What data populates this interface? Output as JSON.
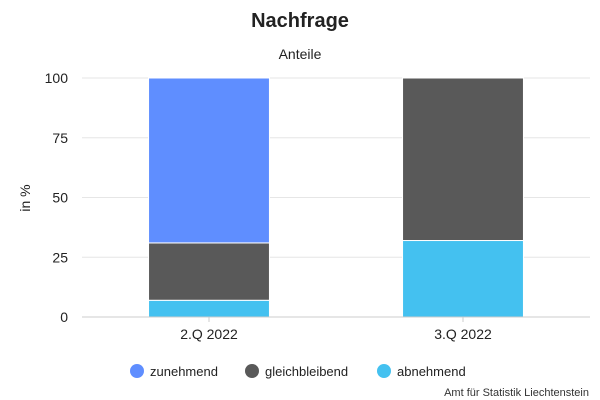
{
  "chart_data": {
    "type": "bar",
    "stacked": true,
    "title": "Nachfrage",
    "subtitle": "Anteile",
    "ylabel": "in %",
    "xlabel": "",
    "ylim": [
      0,
      100
    ],
    "yticks": [
      0,
      25,
      50,
      75,
      100
    ],
    "grid": true,
    "legend_position": "bottom",
    "categories": [
      "2.Q 2022",
      "3.Q 2022"
    ],
    "series": [
      {
        "name": "abnehmend",
        "color": "#44c1f0",
        "values": [
          7,
          32
        ]
      },
      {
        "name": "gleichbleibend",
        "color": "#595959",
        "values": [
          24,
          68
        ]
      },
      {
        "name": "zunehmend",
        "color": "#5f8eff",
        "values": [
          69,
          0
        ]
      }
    ],
    "legend_order": [
      "zunehmend",
      "gleichbleibend",
      "abnehmend"
    ],
    "credit": "Amt für Statistik Liechtenstein"
  }
}
